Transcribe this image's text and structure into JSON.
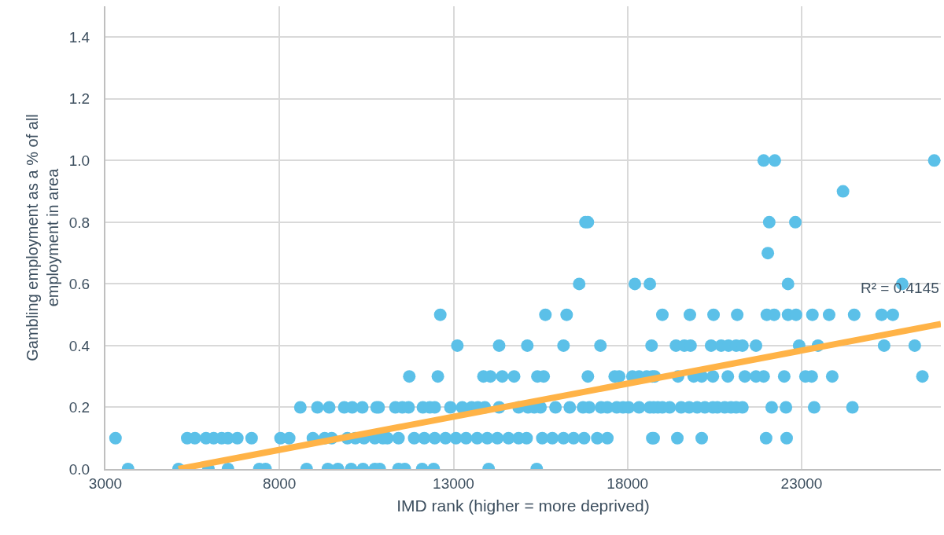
{
  "chart_data": {
    "type": "scatter",
    "xlabel": "IMD rank (higher = more deprived)",
    "ylabel": "Gambling employment as a % of all employment in area",
    "xlim": [
      3000,
      27000
    ],
    "xticks": [
      3000,
      8000,
      13000,
      18000,
      23000
    ],
    "ylim": [
      0,
      1.5
    ],
    "yticks": [
      {
        "value": 0,
        "label": "0.0"
      },
      {
        "value": 0.2,
        "label": "0.2"
      },
      {
        "value": 0.4,
        "label": "0.4"
      },
      {
        "value": 0.6,
        "label": "0.6"
      },
      {
        "value": 0.8,
        "label": "0.8"
      },
      {
        "value": 1.0,
        "label": "1.0"
      },
      {
        "value": 1.2,
        "label": "1.2"
      },
      {
        "value": 1.4,
        "label": "1.4"
      }
    ],
    "grid": true,
    "series": [
      {
        "marker": "circle",
        "color": "#5bc0e8",
        "x": [
          21910,
          22230,
          26810,
          24190,
          16790,
          16860,
          22070,
          22820,
          22030,
          16610,
          18210,
          18640,
          22610,
          25890,
          12620,
          15640,
          16250,
          19000,
          19790,
          20470,
          21150,
          22000,
          22210,
          22610,
          22840,
          23310,
          23790,
          24510,
          25300,
          25620,
          13110,
          14310,
          15120,
          16160,
          17220,
          18690,
          19390,
          19630,
          19810,
          20400,
          20690,
          20900,
          21120,
          21300,
          21690,
          22930,
          23470,
          25370,
          26250,
          11730,
          12550,
          13860,
          14060,
          14400,
          14740,
          15410,
          15590,
          16860,
          17630,
          17760,
          18140,
          18330,
          18550,
          18780,
          18710,
          19000,
          19450,
          19900,
          20130,
          20450,
          20880,
          21370,
          21690,
          21910,
          22500,
          23110,
          23290,
          23880,
          26470,
          8600,
          9090,
          9430,
          9860,
          10090,
          10380,
          10790,
          10850,
          11330,
          11530,
          11710,
          12120,
          12320,
          12460,
          12910,
          13250,
          13520,
          13700,
          13900,
          14310,
          14870,
          15140,
          15320,
          15500,
          15930,
          16340,
          16720,
          16900,
          17240,
          17420,
          17690,
          17870,
          18030,
          18330,
          18640,
          18870,
          18750,
          19000,
          19210,
          19540,
          19770,
          20000,
          20220,
          20450,
          20580,
          20790,
          20970,
          21120,
          21300,
          22140,
          22550,
          23360,
          24460,
          3290,
          5350,
          5570,
          5890,
          6110,
          6340,
          6520,
          6790,
          7200,
          8030,
          8280,
          8960,
          9300,
          9500,
          9950,
          10180,
          10430,
          10740,
          10970,
          11100,
          11420,
          11870,
          12160,
          12460,
          12770,
          13070,
          13360,
          13680,
          13970,
          14260,
          14580,
          14870,
          15100,
          15550,
          15840,
          16160,
          16450,
          16750,
          17130,
          17420,
          18710,
          18750,
          19430,
          20130,
          21980,
          22570,
          3650,
          5100,
          5960,
          6520,
          7420,
          7600,
          8780,
          9390,
          9680,
          10060,
          10400,
          10740,
          10880,
          11420,
          11600,
          12100,
          12430,
          14010,
          15390
        ],
        "values": [
          1.0,
          1.0,
          1.0,
          0.9,
          0.8,
          0.8,
          0.8,
          0.8,
          0.7,
          0.6,
          0.6,
          0.6,
          0.6,
          0.6,
          0.5,
          0.5,
          0.5,
          0.5,
          0.5,
          0.5,
          0.5,
          0.5,
          0.5,
          0.5,
          0.5,
          0.5,
          0.5,
          0.5,
          0.5,
          0.5,
          0.4,
          0.4,
          0.4,
          0.4,
          0.4,
          0.4,
          0.4,
          0.4,
          0.4,
          0.4,
          0.4,
          0.4,
          0.4,
          0.4,
          0.4,
          0.4,
          0.4,
          0.4,
          0.4,
          0.3,
          0.3,
          0.3,
          0.3,
          0.3,
          0.3,
          0.3,
          0.3,
          0.3,
          0.3,
          0.3,
          0.3,
          0.3,
          0.3,
          0.3,
          0.3,
          null,
          0.3,
          0.3,
          0.3,
          0.3,
          0.3,
          0.3,
          0.3,
          0.3,
          0.3,
          0.3,
          0.3,
          0.3,
          0.3,
          0.2,
          0.2,
          0.2,
          0.2,
          0.2,
          0.2,
          0.2,
          0.2,
          0.2,
          0.2,
          0.2,
          0.2,
          0.2,
          0.2,
          0.2,
          0.2,
          0.2,
          0.2,
          0.2,
          0.2,
          0.2,
          0.2,
          0.2,
          0.2,
          0.2,
          0.2,
          0.2,
          0.2,
          0.2,
          0.2,
          0.2,
          0.2,
          0.2,
          0.2,
          0.2,
          0.2,
          0.2,
          0.2,
          0.2,
          0.2,
          0.2,
          0.2,
          0.2,
          0.2,
          0.2,
          0.2,
          0.2,
          0.2,
          0.2,
          0.2,
          0.2,
          0.2,
          0.2,
          0.1,
          0.1,
          0.1,
          0.1,
          0.1,
          0.1,
          0.1,
          0.1,
          0.1,
          0.1,
          0.1,
          0.1,
          0.1,
          0.1,
          0.1,
          0.1,
          0.1,
          0.1,
          0.1,
          0.1,
          0.1,
          0.1,
          0.1,
          0.1,
          0.1,
          0.1,
          0.1,
          0.1,
          0.1,
          0.1,
          0.1,
          0.1,
          0.1,
          0.1,
          0.1,
          0.1,
          0.1,
          0.1,
          0.1,
          0.1,
          0.1,
          0.1,
          0.1,
          0.1,
          0.1,
          0.1,
          0,
          0,
          0,
          0,
          0,
          0,
          0,
          0,
          0,
          0,
          0,
          0,
          0,
          0,
          0,
          0,
          0,
          0,
          0
        ]
      },
      {
        "type": "line",
        "color": "#ffb347",
        "x": [
          5100,
          27000
        ],
        "values": [
          0,
          0.47
        ]
      }
    ],
    "annotations": [
      "R² = 0.4145"
    ]
  }
}
